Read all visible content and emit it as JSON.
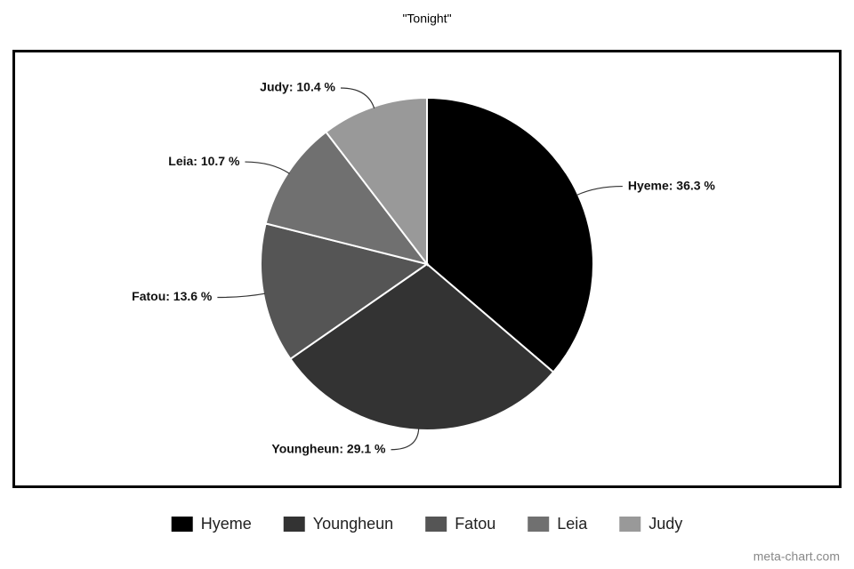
{
  "chart_data": {
    "type": "pie",
    "title": "\"Tonight\"",
    "categories": [
      "Hyeme",
      "Youngheun",
      "Fatou",
      "Leia",
      "Judy"
    ],
    "values": [
      36.3,
      29.1,
      13.6,
      10.7,
      10.4
    ],
    "value_labels": [
      "Hyeme: 36.3 %",
      "Youngheun: 29.1 %",
      "Fatou: 13.6 %",
      "Leia: 10.7 %",
      "Judy: 10.4 %"
    ],
    "colors": [
      "#000000",
      "#333333",
      "#555555",
      "#707070",
      "#999999"
    ],
    "legend": "bottom",
    "watermark": "meta-chart.com"
  }
}
